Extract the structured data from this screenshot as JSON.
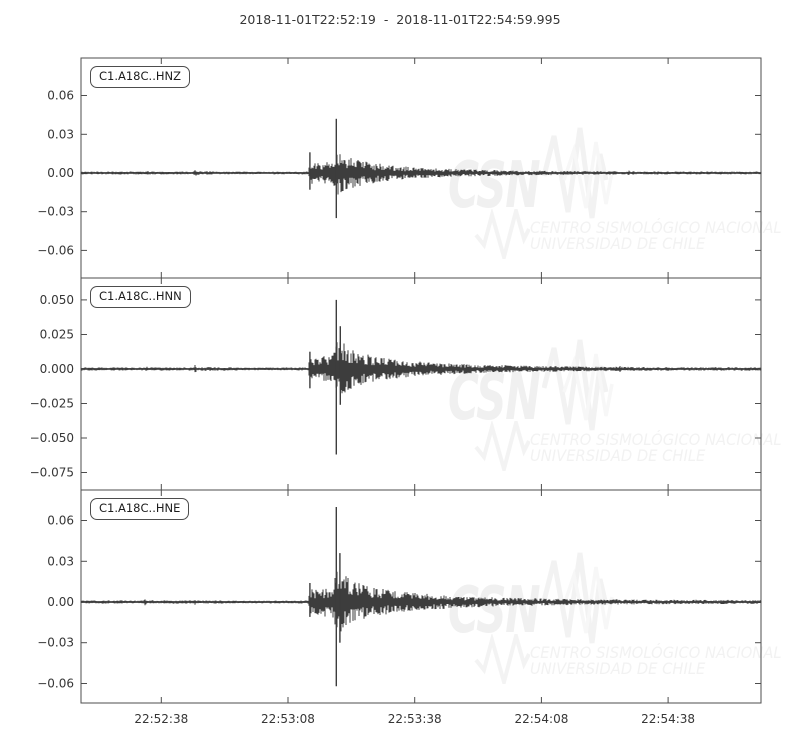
{
  "title": "2018-11-01T22:52:19  -  2018-11-01T22:54:59.995",
  "watermark": {
    "logo": "CSN",
    "line1": "CENTRO SISMOLÓGICO NACIONAL",
    "line2": "UNIVERSIDAD DE CHILE"
  },
  "colors": {
    "trace": "#3d3d3d",
    "axis": "#4d4d4d",
    "text": "#363636",
    "watermark": "#f1f1f1"
  },
  "chart_data": {
    "type": "line",
    "title": "2018-11-01T22:52:19 - 2018-11-01T22:54:59.995",
    "time_start": "2018-11-01T22:52:19",
    "time_end": "2018-11-01T22:54:59.995",
    "xlim_seconds": [
      0,
      160.995
    ],
    "grid": false,
    "xticks": [
      {
        "t": 19,
        "label": "22:52:38"
      },
      {
        "t": 49,
        "label": "22:53:08"
      },
      {
        "t": 79,
        "label": "22:53:38"
      },
      {
        "t": 109,
        "label": "22:54:08"
      },
      {
        "t": 139,
        "label": "22:54:38"
      }
    ],
    "subplots": [
      {
        "label": "C1.A18C..HNZ",
        "ylim": [
          -0.0814,
          0.0891
        ],
        "yticks": [
          {
            "v": 0.06,
            "label": "0.06"
          },
          {
            "v": 0.03,
            "label": "0.03"
          },
          {
            "v": 0.0,
            "label": "0.00"
          },
          {
            "v": -0.03,
            "label": "−0.03"
          },
          {
            "v": -0.06,
            "label": "−0.06"
          }
        ],
        "envelope": [
          [
            0,
            0.0009
          ],
          [
            15.3,
            0.0009
          ],
          [
            15.7,
            0.0024
          ],
          [
            16.1,
            0.0009
          ],
          [
            26.6,
            0.0009
          ],
          [
            27,
            0.0024
          ],
          [
            27.4,
            0.001
          ],
          [
            28.5,
            0.0013
          ],
          [
            30.5,
            0.0013
          ],
          [
            31,
            0.0009
          ],
          [
            40,
            0.0008
          ],
          [
            53.9,
            0.0009
          ],
          [
            54.1,
            0.0085
          ],
          [
            55,
            0.006
          ],
          [
            56,
            0.0068
          ],
          [
            57,
            0.0055
          ],
          [
            58,
            0.0072
          ],
          [
            59,
            0.006
          ],
          [
            60,
            0.0085
          ],
          [
            60.4,
            0.015
          ],
          [
            61,
            0.0125
          ],
          [
            61.6,
            0.0135
          ],
          [
            62.5,
            0.011
          ],
          [
            63.5,
            0.0095
          ],
          [
            65,
            0.0085
          ],
          [
            66.5,
            0.0075
          ],
          [
            68,
            0.0068
          ],
          [
            70,
            0.0058
          ],
          [
            72,
            0.005
          ],
          [
            75,
            0.0042
          ],
          [
            78,
            0.0036
          ],
          [
            82,
            0.003
          ],
          [
            86,
            0.0026
          ],
          [
            90,
            0.0022
          ],
          [
            95,
            0.0019
          ],
          [
            100,
            0.0016
          ],
          [
            105,
            0.0014
          ],
          [
            110,
            0.0013
          ],
          [
            115,
            0.0012
          ],
          [
            120,
            0.0011
          ],
          [
            129.3,
            0.001
          ],
          [
            129.7,
            0.0019
          ],
          [
            130.1,
            0.001
          ],
          [
            140,
            0.0009
          ],
          [
            150,
            0.0009
          ],
          [
            161,
            0.0009
          ]
        ],
        "spikes": [
          [
            54.2,
            0.016,
            -0.013
          ],
          [
            60.45,
            0.042,
            -0.035
          ]
        ]
      },
      {
        "label": "C1.A18C..HNN",
        "ylim": [
          -0.0877,
          0.0659
        ],
        "yticks": [
          {
            "v": 0.05,
            "label": "0.050"
          },
          {
            "v": 0.025,
            "label": "0.025"
          },
          {
            "v": 0.0,
            "label": "0.000"
          },
          {
            "v": -0.025,
            "label": "−0.025"
          },
          {
            "v": -0.05,
            "label": "−0.050"
          },
          {
            "v": -0.075,
            "label": "−0.075"
          }
        ],
        "envelope": [
          [
            0,
            0.0009
          ],
          [
            15.3,
            0.0009
          ],
          [
            15.7,
            0.0026
          ],
          [
            16.1,
            0.0009
          ],
          [
            26.6,
            0.0009
          ],
          [
            27,
            0.0026
          ],
          [
            27.4,
            0.001
          ],
          [
            30,
            0.0011
          ],
          [
            40,
            0.0008
          ],
          [
            53.9,
            0.0009
          ],
          [
            54.1,
            0.008
          ],
          [
            55,
            0.0065
          ],
          [
            56,
            0.0072
          ],
          [
            57,
            0.006
          ],
          [
            58,
            0.008
          ],
          [
            59,
            0.0068
          ],
          [
            60,
            0.0095
          ],
          [
            60.4,
            0.019
          ],
          [
            61,
            0.015
          ],
          [
            61.6,
            0.017
          ],
          [
            62.5,
            0.0135
          ],
          [
            63.5,
            0.0115
          ],
          [
            65,
            0.0105
          ],
          [
            66.5,
            0.0092
          ],
          [
            68,
            0.0082
          ],
          [
            70,
            0.007
          ],
          [
            72,
            0.0062
          ],
          [
            75,
            0.0052
          ],
          [
            78,
            0.0045
          ],
          [
            82,
            0.0038
          ],
          [
            86,
            0.0032
          ],
          [
            90,
            0.0028
          ],
          [
            95,
            0.0024
          ],
          [
            100,
            0.0021
          ],
          [
            105,
            0.0018
          ],
          [
            110,
            0.0016
          ],
          [
            115,
            0.0015
          ],
          [
            120,
            0.0013
          ],
          [
            127.3,
            0.0012
          ],
          [
            127.7,
            0.0022
          ],
          [
            128.1,
            0.0012
          ],
          [
            140,
            0.001
          ],
          [
            161,
            0.001
          ]
        ],
        "spikes": [
          [
            54.2,
            0.0125,
            -0.014
          ],
          [
            60.45,
            0.05,
            -0.062
          ],
          [
            61.4,
            0.031,
            -0.026
          ]
        ]
      },
      {
        "label": "C1.A18C..HNE",
        "ylim": [
          -0.0744,
          0.0825
        ],
        "yticks": [
          {
            "v": 0.06,
            "label": "0.06"
          },
          {
            "v": 0.03,
            "label": "0.03"
          },
          {
            "v": 0.0,
            "label": "0.00"
          },
          {
            "v": -0.03,
            "label": "−0.03"
          },
          {
            "v": -0.06,
            "label": "−0.06"
          }
        ],
        "envelope": [
          [
            0,
            0.0009
          ],
          [
            14.8,
            0.0009
          ],
          [
            15.2,
            0.0032
          ],
          [
            15.6,
            0.001
          ],
          [
            26.6,
            0.0009
          ],
          [
            27,
            0.0026
          ],
          [
            27.4,
            0.001
          ],
          [
            40,
            0.0008
          ],
          [
            53.9,
            0.0009
          ],
          [
            54.1,
            0.009
          ],
          [
            55,
            0.007
          ],
          [
            56,
            0.0078
          ],
          [
            57,
            0.0066
          ],
          [
            58,
            0.0088
          ],
          [
            59,
            0.0075
          ],
          [
            60,
            0.0105
          ],
          [
            60.4,
            0.021
          ],
          [
            61,
            0.017
          ],
          [
            61.6,
            0.019
          ],
          [
            62.5,
            0.0155
          ],
          [
            63.5,
            0.0135
          ],
          [
            65,
            0.012
          ],
          [
            66.5,
            0.0108
          ],
          [
            68,
            0.0095
          ],
          [
            70,
            0.0082
          ],
          [
            72,
            0.0072
          ],
          [
            75,
            0.0062
          ],
          [
            78,
            0.0054
          ],
          [
            82,
            0.0046
          ],
          [
            86,
            0.0039
          ],
          [
            90,
            0.0034
          ],
          [
            95,
            0.0029
          ],
          [
            100,
            0.0025
          ],
          [
            105,
            0.0022
          ],
          [
            110,
            0.002
          ],
          [
            115,
            0.0018
          ],
          [
            120,
            0.0016
          ],
          [
            130,
            0.0014
          ],
          [
            140,
            0.0013
          ],
          [
            150,
            0.0012
          ],
          [
            161,
            0.0011
          ]
        ],
        "spikes": [
          [
            54.2,
            0.014,
            -0.011
          ],
          [
            60.45,
            0.07,
            -0.062
          ],
          [
            61.3,
            0.036,
            -0.03
          ]
        ]
      }
    ]
  }
}
